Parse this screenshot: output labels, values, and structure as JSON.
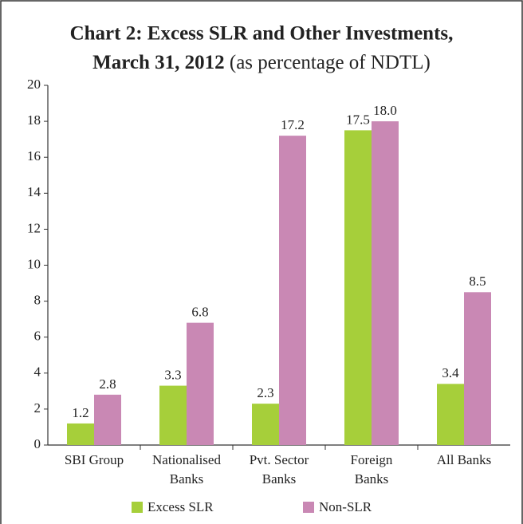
{
  "chart_data": {
    "type": "bar",
    "title": [
      "Chart 2: Excess SLR and Other Investments,",
      "March 31, 2012"
    ],
    "subtitle": "(as percentage of NDTL)",
    "categories": [
      [
        "SBI Group"
      ],
      [
        "Nationalised",
        "Banks"
      ],
      [
        "Pvt. Sector",
        "Banks"
      ],
      [
        "Foreign",
        "Banks"
      ],
      [
        "All Banks"
      ]
    ],
    "series": [
      {
        "name": "Excess SLR",
        "color": "#a6cf3a",
        "values": [
          1.2,
          3.3,
          2.3,
          17.5,
          3.4
        ],
        "value_labels": [
          "1.2",
          "3.3",
          "2.3",
          "17.5",
          "3.4"
        ]
      },
      {
        "name": "Non-SLR",
        "color": "#c988b4",
        "values": [
          2.8,
          6.8,
          17.2,
          18,
          8.5
        ],
        "value_labels": [
          "2.8",
          "6.8",
          "17.2",
          "18.0",
          "8.5"
        ]
      }
    ],
    "ylim": [
      0,
      20
    ],
    "yticks": [
      0,
      2,
      4,
      6,
      8,
      10,
      12,
      14,
      16,
      18,
      20
    ],
    "grid": false
  }
}
